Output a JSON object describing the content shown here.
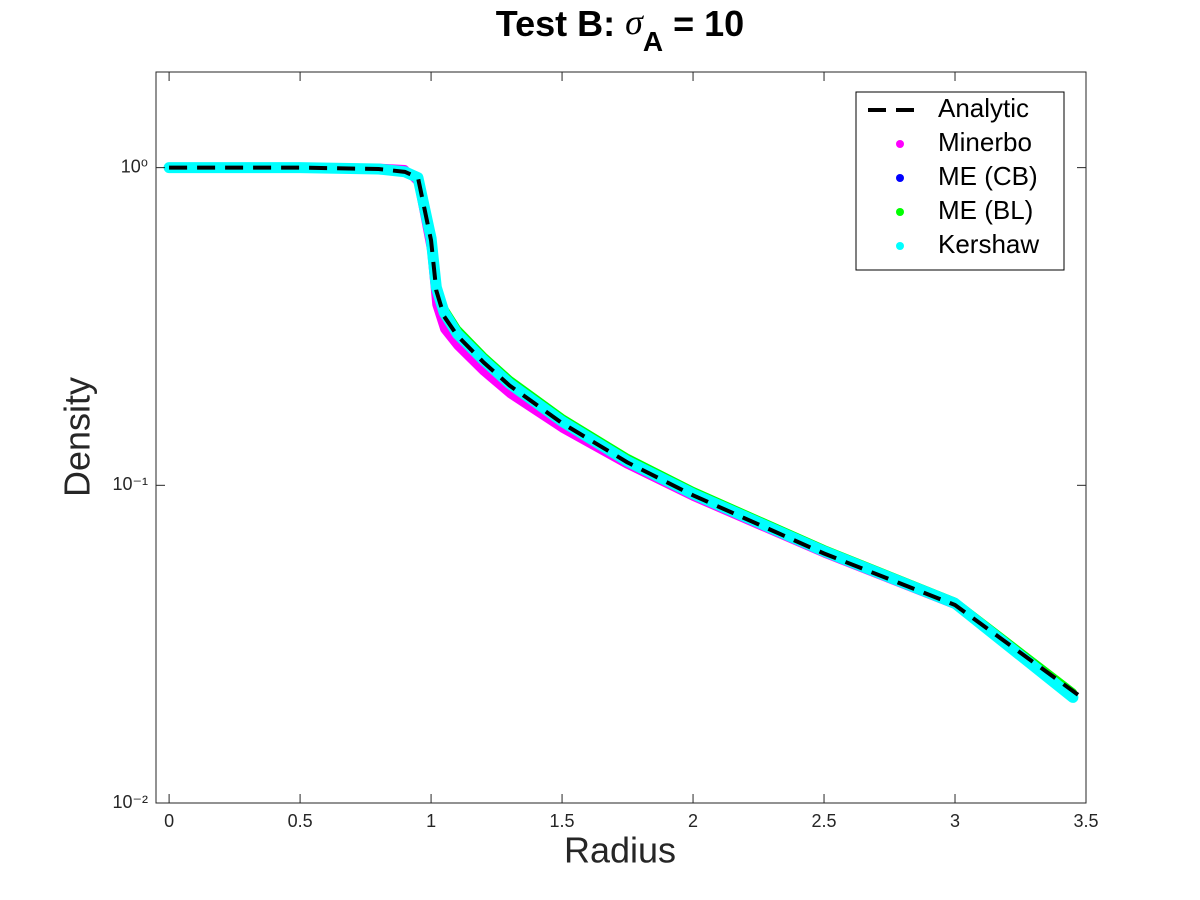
{
  "chart_data": {
    "type": "line",
    "title": [
      "Test B: ",
      "σ",
      "A",
      " = 10"
    ],
    "xlabel": "Radius",
    "ylabel": "Density",
    "xlim": [
      -0.05,
      3.5
    ],
    "ylim": [
      0.01,
      2
    ],
    "log_y": true,
    "xticks": [
      0,
      0.5,
      1,
      1.5,
      2,
      2.5,
      3,
      3.5
    ],
    "yticks": [
      {
        "value": 1,
        "label": "10⁰"
      },
      {
        "value": 0.1,
        "label": "10⁻¹"
      },
      {
        "value": 0.01,
        "label": "10⁻²"
      }
    ],
    "legend": "upper right",
    "series": [
      {
        "name": "Analytic",
        "color": "#000000",
        "style": "dashed",
        "x": [
          0,
          0.5,
          0.8,
          0.9,
          0.95,
          1.0,
          1.02,
          1.05,
          1.1,
          1.2,
          1.3,
          1.5,
          1.75,
          2,
          2.5,
          3,
          3.5
        ],
        "values": [
          1,
          1,
          0.99,
          0.97,
          0.93,
          0.59,
          0.41,
          0.34,
          0.296,
          0.244,
          0.206,
          0.157,
          0.118,
          0.093,
          0.061,
          0.042,
          0.021
        ]
      },
      {
        "name": "Minerbo",
        "color": "#ff00ff",
        "style": "markers",
        "x": [
          0,
          0.5,
          0.8,
          0.9,
          0.95,
          1.0,
          1.02,
          1.05,
          1.1,
          1.2,
          1.3,
          1.5,
          1.75,
          2,
          2.5,
          3,
          3.45
        ],
        "values": [
          1,
          1,
          1.0,
          0.99,
          0.9,
          0.55,
          0.37,
          0.31,
          0.275,
          0.228,
          0.194,
          0.151,
          0.116,
          0.092,
          0.061,
          0.042,
          0.022
        ]
      },
      {
        "name": "ME (CB)",
        "color": "#0000ff",
        "style": "markers",
        "x": [
          0,
          0.5,
          0.8,
          0.9,
          0.95,
          1.0,
          1.02,
          1.05,
          1.1,
          1.2,
          1.3,
          1.5,
          1.75,
          2,
          2.5,
          3,
          3.45
        ],
        "values": [
          1,
          1,
          0.99,
          0.97,
          0.93,
          0.6,
          0.42,
          0.35,
          0.3,
          0.25,
          0.21,
          0.16,
          0.12,
          0.095,
          0.062,
          0.0425,
          0.022
        ]
      },
      {
        "name": "ME (BL)",
        "color": "#00ff00",
        "style": "markers",
        "x": [
          0,
          0.5,
          0.8,
          0.9,
          0.95,
          1.0,
          1.02,
          1.05,
          1.1,
          1.2,
          1.3,
          1.5,
          1.75,
          2,
          2.5,
          3,
          3.45
        ],
        "values": [
          1,
          1,
          0.99,
          0.97,
          0.93,
          0.6,
          0.43,
          0.36,
          0.31,
          0.255,
          0.215,
          0.163,
          0.122,
          0.096,
          0.063,
          0.043,
          0.0223
        ]
      },
      {
        "name": "Kershaw",
        "color": "#00ffff",
        "style": "markers",
        "x": [
          0,
          0.5,
          0.8,
          0.9,
          0.95,
          1.0,
          1.02,
          1.05,
          1.1,
          1.2,
          1.3,
          1.5,
          1.75,
          2,
          2.5,
          3,
          3.45
        ],
        "values": [
          1,
          1,
          0.99,
          0.97,
          0.93,
          0.6,
          0.42,
          0.35,
          0.3,
          0.248,
          0.209,
          0.159,
          0.119,
          0.094,
          0.062,
          0.0425,
          0.0215
        ]
      }
    ]
  }
}
